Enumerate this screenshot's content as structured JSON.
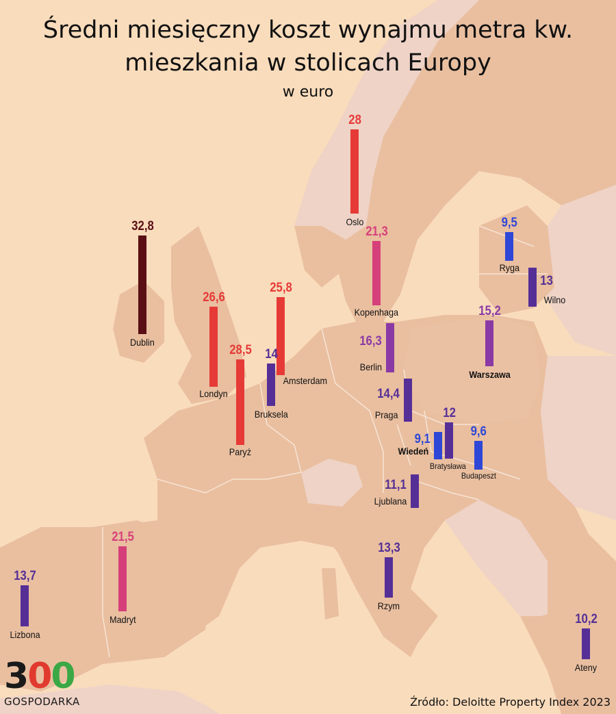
{
  "title_line1": "Średni miesięczny koszt wynajmu metra kw.",
  "title_line2": "mieszkania w stolicach Europy",
  "subtitle": "w euro",
  "source": "Źródło: Deloitte Property Index 2023",
  "logo": {
    "digits": [
      "3",
      "0",
      "0"
    ],
    "text": "GOSPODARKA"
  },
  "colors": {
    "sea": "#f9dcbc",
    "land": "#e9bfa0",
    "land_light": "#f1d3c1",
    "non_eu": "#efd3c7",
    "darkred": "#5a0f14",
    "red": "#e63a37",
    "pink": "#d6407a",
    "purple": "#8a3aa5",
    "indigo": "#552f96",
    "blue": "#2f47d6"
  },
  "chart_data": {
    "type": "bar",
    "unit": "EUR per m² per month",
    "cities": [
      {
        "name": "Dublin",
        "value": 32.8,
        "label": "32,8",
        "color": "#5a0f14"
      },
      {
        "name": "Oslo",
        "value": 28,
        "label": "28",
        "color": "#e63a37"
      },
      {
        "name": "Paryż",
        "value": 28.5,
        "label": "28,5",
        "color": "#e63a37"
      },
      {
        "name": "Londyn",
        "value": 26.6,
        "label": "26,6",
        "color": "#e63a37"
      },
      {
        "name": "Amsterdam",
        "value": 25.8,
        "label": "25,8",
        "color": "#e63a37"
      },
      {
        "name": "Madryt",
        "value": 21.5,
        "label": "21,5",
        "color": "#d6407a"
      },
      {
        "name": "Kopenhaga",
        "value": 21.3,
        "label": "21,3",
        "color": "#d6407a"
      },
      {
        "name": "Berlin",
        "value": 16.3,
        "label": "16,3",
        "color": "#8a3aa5"
      },
      {
        "name": "Warszawa",
        "value": 15.2,
        "label": "15,2",
        "color": "#8a3aa5",
        "bold": true
      },
      {
        "name": "Praga",
        "value": 14.4,
        "label": "14,4",
        "color": "#552f96"
      },
      {
        "name": "Bruksela",
        "value": 14,
        "label": "14",
        "color": "#552f96"
      },
      {
        "name": "Lizbona",
        "value": 13.7,
        "label": "13,7",
        "color": "#552f96"
      },
      {
        "name": "Rzym",
        "value": 13.3,
        "label": "13,3",
        "color": "#552f96"
      },
      {
        "name": "Wilno",
        "value": 13,
        "label": "13",
        "color": "#552f96"
      },
      {
        "name": "Bratysława",
        "value": 12,
        "label": "12",
        "color": "#552f96"
      },
      {
        "name": "Ljublana",
        "value": 11.1,
        "label": "11,1",
        "color": "#552f96"
      },
      {
        "name": "Ateny",
        "value": 10.2,
        "label": "10,2",
        "color": "#552f96"
      },
      {
        "name": "Budapeszt",
        "value": 9.6,
        "label": "9,6",
        "color": "#2f47d6"
      },
      {
        "name": "Ryga",
        "value": 9.5,
        "label": "9,5",
        "color": "#2f47d6"
      },
      {
        "name": "Wiedeń",
        "value": 9.1,
        "label": "9,1",
        "color": "#2f47d6",
        "bold": true
      }
    ]
  }
}
